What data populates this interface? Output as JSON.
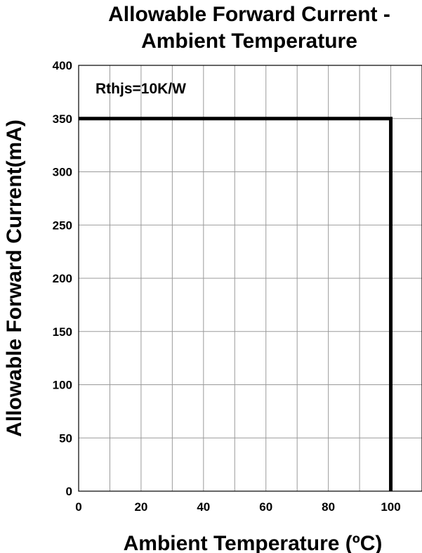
{
  "chart_data": {
    "type": "line",
    "title_lines": [
      "Allowable Forward Current -",
      "Ambient Temperature"
    ],
    "xlabel": "Ambient Temperature (ºC)",
    "ylabel": "Allowable Forward Current(mA)",
    "xlim": [
      0,
      110
    ],
    "ylim": [
      0,
      400
    ],
    "xticks": [
      0,
      20,
      40,
      60,
      80,
      100
    ],
    "yticks": [
      0,
      50,
      100,
      150,
      200,
      250,
      300,
      350,
      400
    ],
    "xgrid_step": 10,
    "ygrid_step": 50,
    "grid": true,
    "annotation": "Rthjs=10K/W",
    "series": [
      {
        "x": [
          0,
          100,
          100
        ],
        "y": [
          350,
          350,
          0
        ]
      }
    ]
  }
}
